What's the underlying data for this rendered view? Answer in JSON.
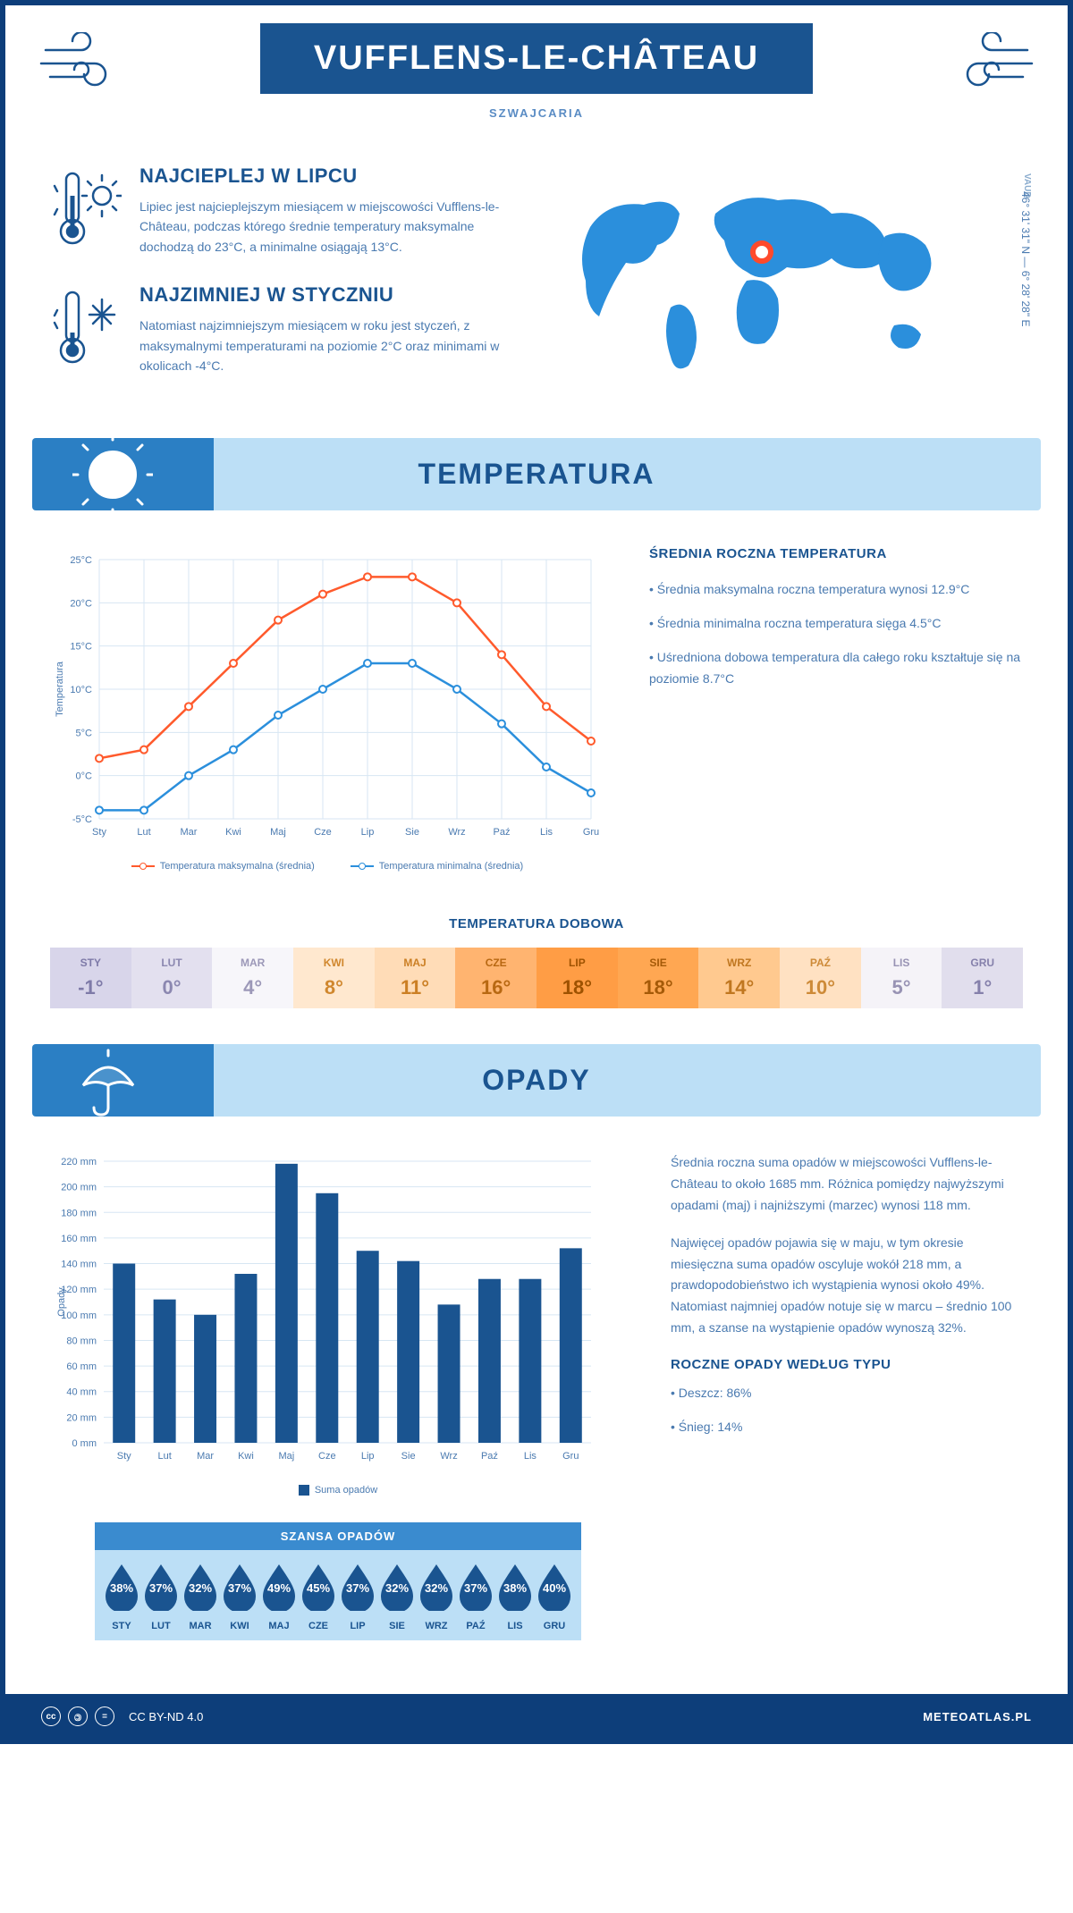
{
  "header": {
    "title": "VUFFLENS-LE-CHÂTEAU",
    "country": "SZWAJCARIA"
  },
  "intro": {
    "hot": {
      "title": "NAJCIEPLEJ W LIPCU",
      "text": "Lipiec jest najcieplejszym miesiącem w miejscowości Vufflens-le-Château, podczas którego średnie temperatury maksymalne dochodzą do 23°C, a minimalne osiągają 13°C."
    },
    "cold": {
      "title": "NAJZIMNIEJ W STYCZNIU",
      "text": "Natomiast najzimniejszym miesiącem w roku jest styczeń, z maksymalnymi temperaturami na poziomie 2°C oraz minimami w okolicach -4°C."
    },
    "region": "VAUD",
    "coords": "46° 31' 31\" N — 6° 28' 28\" E"
  },
  "temp_section": {
    "title": "TEMPERATURA",
    "chart": {
      "type": "line",
      "months": [
        "Sty",
        "Lut",
        "Mar",
        "Kwi",
        "Maj",
        "Cze",
        "Lip",
        "Sie",
        "Wrz",
        "Paź",
        "Lis",
        "Gru"
      ],
      "max_series": [
        2,
        3,
        8,
        13,
        18,
        21,
        23,
        23,
        20,
        14,
        8,
        4
      ],
      "min_series": [
        -4,
        -4,
        0,
        3,
        7,
        10,
        13,
        13,
        10,
        6,
        1,
        -2
      ],
      "max_color": "#ff5a2c",
      "min_color": "#2b8fdc",
      "ylim": [
        -5,
        25
      ],
      "ytick_step": 5,
      "ylabel": "Temperatura",
      "ylabel_suffix": "°C",
      "bg": "#ffffff",
      "grid_color": "#d7e6f3",
      "legend_max": "Temperatura maksymalna (średnia)",
      "legend_min": "Temperatura minimalna (średnia)"
    },
    "info_title": "ŚREDNIA ROCZNA TEMPERATURA",
    "info_items": [
      "• Średnia maksymalna roczna temperatura wynosi 12.9°C",
      "• Średnia minimalna roczna temperatura sięga 4.5°C",
      "• Uśredniona dobowa temperatura dla całego roku kształtuje się na poziomie 8.7°C"
    ],
    "daily_title": "TEMPERATURA DOBOWA",
    "daily": {
      "months": [
        "STY",
        "LUT",
        "MAR",
        "KWI",
        "MAJ",
        "CZE",
        "LIP",
        "SIE",
        "WRZ",
        "PAŹ",
        "LIS",
        "GRU"
      ],
      "values": [
        "-1°",
        "0°",
        "4°",
        "8°",
        "11°",
        "16°",
        "18°",
        "18°",
        "14°",
        "10°",
        "5°",
        "1°"
      ],
      "bg_colors": [
        "#d8d5ea",
        "#e3e0ef",
        "#f7f6fa",
        "#ffe8cf",
        "#ffdcb7",
        "#ffb470",
        "#ff9d45",
        "#ffa752",
        "#ffc98f",
        "#ffe1c2",
        "#f5f3f8",
        "#e1deed"
      ],
      "text_colors": [
        "#7e7aa8",
        "#8b87b0",
        "#9c98b8",
        "#d0872e",
        "#cb7f24",
        "#b86812",
        "#9e5200",
        "#a55a08",
        "#c07720",
        "#cd8a38",
        "#9893b4",
        "#8580ab"
      ]
    }
  },
  "precip_section": {
    "title": "OPADY",
    "chart": {
      "type": "bar",
      "months": [
        "Sty",
        "Lut",
        "Mar",
        "Kwi",
        "Maj",
        "Cze",
        "Lip",
        "Sie",
        "Wrz",
        "Paź",
        "Lis",
        "Gru"
      ],
      "values": [
        140,
        112,
        100,
        132,
        218,
        195,
        150,
        142,
        108,
        128,
        128,
        152
      ],
      "bar_color": "#1a5490",
      "ylim": [
        0,
        220
      ],
      "ytick_step": 20,
      "ylabel": "Opady",
      "ylabel_suffix": " mm",
      "grid_color": "#d7e6f3",
      "legend_label": "Suma opadów"
    },
    "paragraphs": [
      "Średnia roczna suma opadów w miejscowości Vufflens-le-Château to około 1685 mm. Różnica pomiędzy najwyższymi opadami (maj) i najniższymi (marzec) wynosi 118 mm.",
      "Najwięcej opadów pojawia się w maju, w tym okresie miesięczna suma opadów oscyluje wokół 218 mm, a prawdopodobieństwo ich wystąpienia wynosi około 49%. Natomiast najmniej opadów notuje się w marcu – średnio 100 mm, a szanse na wystąpienie opadów wynoszą 32%."
    ],
    "chance_title": "SZANSA OPADÓW",
    "chance": {
      "months": [
        "STY",
        "LUT",
        "MAR",
        "KWI",
        "MAJ",
        "CZE",
        "LIP",
        "SIE",
        "WRZ",
        "PAŹ",
        "LIS",
        "GRU"
      ],
      "pct": [
        "38%",
        "37%",
        "32%",
        "37%",
        "49%",
        "45%",
        "37%",
        "32%",
        "32%",
        "37%",
        "38%",
        "40%"
      ],
      "drop_color": "#1a5490"
    },
    "type_title": "ROCZNE OPADY WEDŁUG TYPU",
    "type_items": [
      "• Deszcz: 86%",
      "• Śnieg: 14%"
    ]
  },
  "footer": {
    "license": "CC BY-ND 4.0",
    "site": "METEOATLAS.PL"
  }
}
